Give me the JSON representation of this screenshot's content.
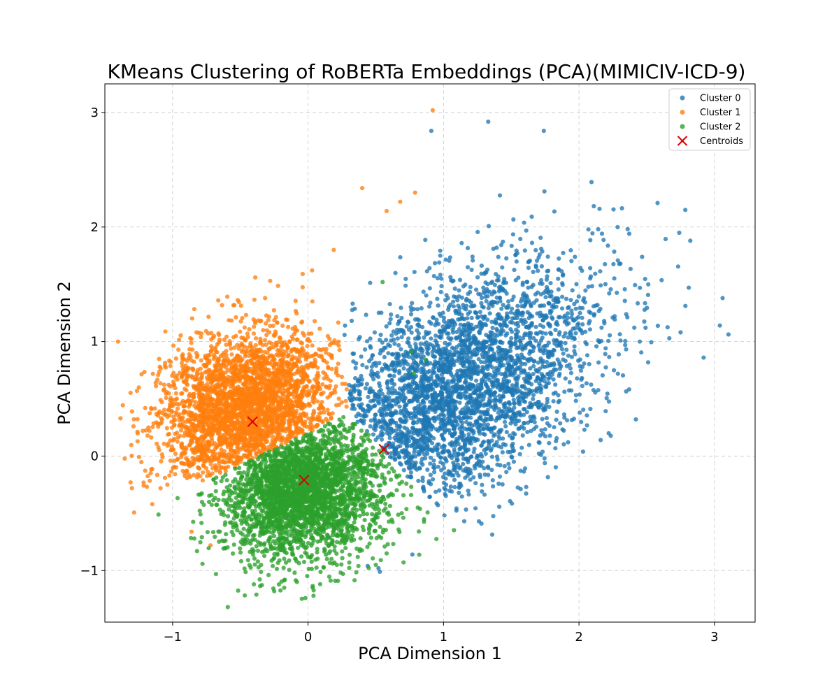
{
  "chart_data": {
    "type": "scatter",
    "title": "KMeans Clustering of RoBERTa Embeddings (PCA)(MIMICIV-ICD-9)",
    "xlabel": "PCA Dimension 1",
    "ylabel": "PCA Dimension 2",
    "xlim": [
      -1.5,
      3.3
    ],
    "ylim": [
      -1.45,
      3.25
    ],
    "x_ticks": [
      -1,
      0,
      1,
      2,
      3
    ],
    "y_ticks": [
      -1,
      0,
      1,
      2,
      3
    ],
    "x_tick_labels": [
      "−1",
      "0",
      "1",
      "2",
      "3"
    ],
    "y_tick_labels": [
      "−1",
      "0",
      "1",
      "2",
      "3"
    ],
    "grid": true,
    "legend_position": "top-right",
    "series": [
      {
        "name": "Cluster 0",
        "color": "#1f77b4",
        "marker": "circle",
        "distribution": {
          "center": [
            1.05,
            0.55
          ],
          "spread": [
            0.55,
            0.55
          ],
          "correlation": 0.55
        },
        "sample_points": [
          [
            1.33,
            2.92
          ],
          [
            0.91,
            2.84
          ],
          [
            1.74,
            2.84
          ],
          [
            2.58,
            2.21
          ],
          [
            2.74,
            1.95
          ],
          [
            2.81,
            1.47
          ],
          [
            3.06,
            1.38
          ],
          [
            3.04,
            1.14
          ],
          [
            2.92,
            0.86
          ],
          [
            2.75,
            1.08
          ],
          [
            2.42,
            0.32
          ],
          [
            2.16,
            0.14
          ],
          [
            2.04,
            0.23
          ],
          [
            1.72,
            0.01
          ],
          [
            1.61,
            -0.27
          ],
          [
            1.28,
            -0.59
          ],
          [
            0.77,
            -0.86
          ],
          [
            0.52,
            -0.98
          ],
          [
            0.53,
            -1.01
          ],
          [
            0.44,
            -0.96
          ]
        ]
      },
      {
        "name": "Cluster 1",
        "color": "#ff7f0e",
        "marker": "circle",
        "distribution": {
          "center": [
            -0.45,
            0.42
          ],
          "spread": [
            0.32,
            0.32
          ],
          "correlation": 0.2
        },
        "sample_points": [
          [
            0.92,
            3.02
          ],
          [
            0.4,
            2.34
          ],
          [
            0.79,
            2.3
          ],
          [
            0.68,
            2.22
          ],
          [
            0.58,
            2.14
          ],
          [
            0.19,
            1.8
          ],
          [
            -0.04,
            1.59
          ],
          [
            -0.28,
            1.53
          ],
          [
            -0.39,
            1.56
          ],
          [
            -1.3,
            0.39
          ],
          [
            -1.22,
            0.22
          ],
          [
            -1.31,
            -0.23
          ],
          [
            -1.15,
            -0.42
          ],
          [
            -0.86,
            -0.66
          ],
          [
            -0.72,
            -0.78
          ]
        ]
      },
      {
        "name": "Cluster 2",
        "color": "#2ca02c",
        "marker": "circle",
        "distribution": {
          "center": [
            -0.05,
            -0.3
          ],
          "spread": [
            0.3,
            0.3
          ],
          "correlation": 0.1
        },
        "sample_points": [
          [
            -0.02,
            -1.24
          ],
          [
            0.04,
            -1.22
          ],
          [
            -0.25,
            -1.18
          ],
          [
            -0.4,
            -1.12
          ],
          [
            -0.68,
            -1.03
          ],
          [
            -0.82,
            -0.83
          ],
          [
            -0.84,
            -0.72
          ],
          [
            0.22,
            -1.09
          ],
          [
            0.5,
            -0.95
          ],
          [
            0.58,
            -0.85
          ],
          [
            0.81,
            -0.45
          ],
          [
            0.76,
            0.91
          ],
          [
            0.87,
            0.84
          ],
          [
            0.55,
            1.52
          ],
          [
            0.78,
            0.72
          ]
        ]
      },
      {
        "name": "Centroids",
        "color": "#dd0000",
        "marker": "x",
        "points": [
          [
            -0.41,
            0.3
          ],
          [
            -0.03,
            -0.21
          ],
          [
            0.56,
            0.06
          ]
        ]
      }
    ]
  }
}
